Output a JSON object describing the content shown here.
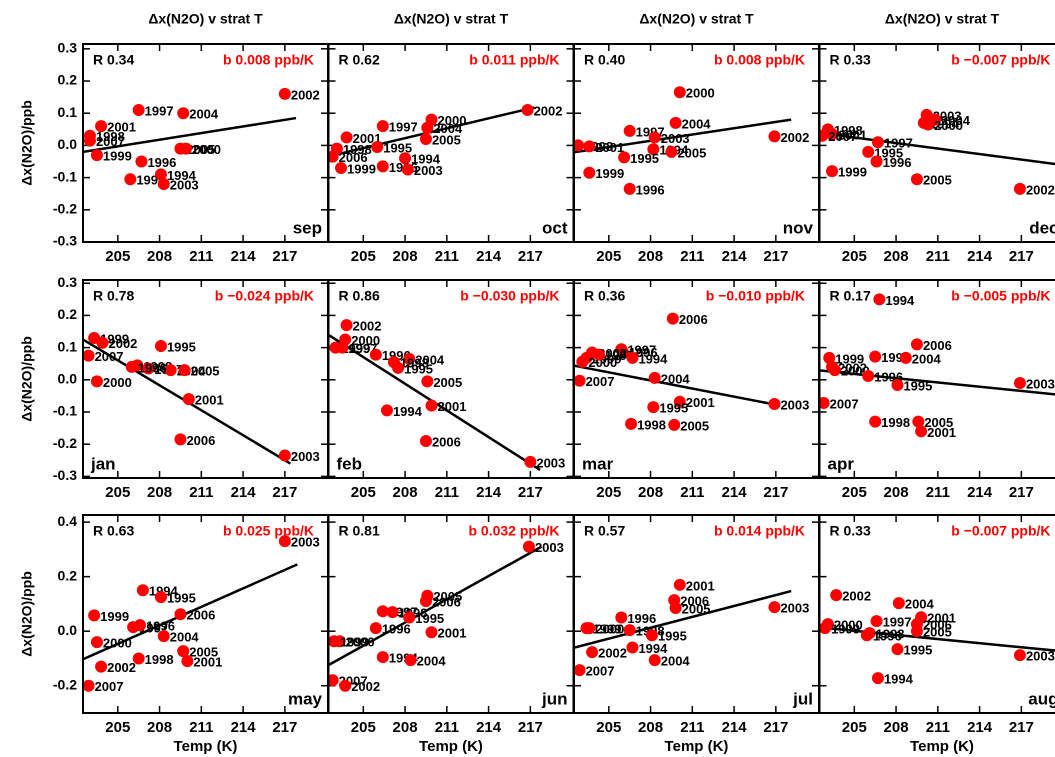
{
  "chart_data": [
    {
      "type": "scatter",
      "title": "Δx(N2O) v strat T",
      "ylabel": "Δx(N2O)/ppb",
      "r_text": "R 0.34",
      "slope_text": "b 0.008 ppb/K",
      "month": "sep",
      "month_corner": "bottom-right",
      "color": "#ff0000",
      "x": [
        217.0,
        206.5,
        209.7,
        203.8,
        203.0,
        203.0,
        209.5,
        209.9,
        203.5,
        206.7,
        205.9,
        208.1,
        208.3
      ],
      "y": [
        0.16,
        0.11,
        0.1,
        0.06,
        0.03,
        0.015,
        -0.01,
        -0.01,
        -0.03,
        -0.05,
        -0.105,
        -0.09,
        -0.12
      ],
      "point_labels": [
        "2002",
        "1997",
        "2004",
        "2001",
        "1998",
        "2007",
        "2005",
        "2000",
        "1999",
        "1996",
        "1995",
        "1994",
        "2003"
      ],
      "fit": {
        "x": [
          202.5,
          217.8
        ],
        "y": [
          -0.02,
          0.085
        ]
      },
      "xlim": [
        202.5,
        220.1
      ],
      "ylim": [
        -0.3,
        0.315
      ],
      "xticks": [
        205,
        208,
        211,
        214,
        217
      ],
      "yticks": [
        0.3,
        0.2,
        0.1,
        {
          "value": 0,
          "label": "0.0"
        },
        -0.1,
        -0.2,
        -0.3
      ]
    },
    {
      "type": "scatter",
      "title": "Δx(N2O) v strat T",
      "r_text": "R 0.62",
      "slope_text": "b 0.011 ppb/K",
      "month": "oct",
      "month_corner": "bottom-right",
      "color": "#ff0000",
      "x": [
        216.8,
        206.4,
        209.9,
        209.6,
        203.8,
        203.1,
        202.8,
        209.5,
        206.0,
        208.0,
        203.4,
        206.4,
        208.2
      ],
      "y": [
        0.11,
        0.06,
        0.08,
        0.055,
        0.025,
        -0.01,
        -0.035,
        0.02,
        -0.005,
        -0.04,
        -0.07,
        -0.065,
        -0.075
      ],
      "point_labels": [
        "2002",
        "1997",
        "2000",
        "2004",
        "2001",
        "1998",
        "2006",
        "2005",
        "1995",
        "1994",
        "1999",
        "1996",
        "2003"
      ],
      "fit": {
        "x": [
          202.4,
          217.3
        ],
        "y": [
          -0.035,
          0.118
        ]
      },
      "xlim": [
        202.5,
        220.1
      ],
      "ylim": [
        -0.3,
        0.315
      ],
      "xticks": [
        205,
        208,
        211,
        214,
        217
      ],
      "yticks": [
        0.3,
        0.2,
        0.1,
        0,
        -0.1,
        -0.2,
        -0.3
      ]
    },
    {
      "type": "scatter",
      "title": "Δx(N2O) v strat T",
      "r_text": "R 0.40",
      "slope_text": "b 0.008 ppb/K",
      "month": "nov",
      "month_corner": "bottom-right",
      "color": "#ff0000",
      "x": [
        210.1,
        209.8,
        206.5,
        208.3,
        216.9,
        202.8,
        203.6,
        208.2,
        209.5,
        206.1,
        203.6,
        206.5
      ],
      "y": [
        0.165,
        0.07,
        0.045,
        0.025,
        0.028,
        0.0,
        -0.003,
        -0.012,
        -0.02,
        -0.037,
        -0.085,
        -0.135
      ],
      "point_labels": [
        "2000",
        "2004",
        "1997",
        "2003",
        "2002",
        "1998",
        "2001",
        "1994",
        "2005",
        "1995",
        "1999",
        "1996"
      ],
      "fit": {
        "x": [
          202.4,
          218.1
        ],
        "y": [
          -0.022,
          0.08
        ]
      },
      "xlim": [
        202.5,
        220.1
      ],
      "ylim": [
        -0.3,
        0.315
      ],
      "xticks": [
        205,
        208,
        211,
        214,
        217
      ],
      "yticks": [
        0.3,
        0.2,
        0.1,
        0,
        -0.1,
        -0.2,
        -0.3
      ]
    },
    {
      "type": "scatter",
      "title": "Δx(N2O) v strat T",
      "r_text": "R 0.33",
      "slope_text": "b −0.007 ppb/K",
      "month": "dec",
      "month_corner": "bottom-right",
      "color": "#ff0000",
      "x": [
        203.1,
        203.4,
        202.7,
        210.2,
        210.0,
        210.8,
        210.3,
        206.7,
        206.0,
        206.6,
        203.4,
        209.5,
        216.9
      ],
      "y": [
        0.05,
        0.035,
        0.03,
        0.095,
        0.07,
        0.08,
        0.065,
        0.01,
        -0.02,
        -0.05,
        -0.08,
        -0.105,
        -0.135
      ],
      "point_labels": [
        "1998",
        "2001",
        "2007",
        "2003",
        "1994",
        "2004",
        "2000",
        "1997",
        "1995",
        "1996",
        "1999",
        "2005",
        "2002"
      ],
      "fit": {
        "x": [
          202.3,
          219.8
        ],
        "y": [
          0.04,
          -0.06
        ]
      },
      "xlim": [
        202.5,
        220.1
      ],
      "ylim": [
        -0.3,
        0.315
      ],
      "xticks": [
        205,
        208,
        211,
        214,
        217
      ],
      "yticks": [
        0.3,
        0.2,
        0.1,
        0,
        -0.1,
        -0.2,
        -0.3
      ]
    },
    {
      "type": "scatter",
      "ylabel": "Δx(N2O)/ppb",
      "r_text": "R 0.78",
      "slope_text": "b −0.024 ppb/K",
      "month": "jan",
      "month_corner": "bottom-left",
      "color": "#ff0000",
      "x": [
        203.3,
        202.9,
        203.9,
        208.1,
        206.4,
        207.2,
        208.8,
        209.8,
        206.0,
        203.5,
        210.1,
        209.5,
        217.0
      ],
      "y": [
        0.13,
        0.075,
        0.115,
        0.105,
        0.045,
        0.035,
        0.03,
        0.03,
        0.04,
        -0.005,
        -0.06,
        -0.185,
        -0.235
      ],
      "point_labels": [
        "1999",
        "2007",
        "2002",
        "1995",
        "1998",
        "1997",
        "2004",
        "2005",
        "1996",
        "2000",
        "2001",
        "2006",
        "2003"
      ],
      "fit": {
        "x": [
          202.5,
          217.4
        ],
        "y": [
          0.125,
          -0.26
        ]
      },
      "xlim": [
        202.5,
        220.1
      ],
      "ylim": [
        -0.305,
        0.31
      ],
      "xticks": [
        205,
        208,
        211,
        214,
        217
      ],
      "yticks": [
        0.3,
        0.2,
        0.1,
        {
          "value": 0,
          "label": "0.0"
        },
        -0.1,
        -0.2,
        -0.3
      ]
    },
    {
      "type": "scatter",
      "r_text": "R 0.86",
      "slope_text": "b −0.030 ppb/K",
      "month": "feb",
      "month_corner": "bottom-left",
      "color": "#ff0000",
      "x": [
        203.8,
        203.7,
        203.0,
        203.5,
        205.9,
        208.3,
        207.2,
        207.5,
        209.6,
        209.9,
        206.7,
        209.5,
        217.0
      ],
      "y": [
        0.17,
        0.125,
        0.1,
        0.1,
        0.078,
        0.065,
        0.055,
        0.037,
        -0.005,
        -0.08,
        -0.095,
        -0.19,
        -0.255
      ],
      "point_labels": [
        "2002",
        "2000",
        "1999",
        "1997",
        "1996",
        "2004",
        "1998",
        "1995",
        "2005",
        "2001",
        "1994",
        "2006",
        "2003"
      ],
      "fit": {
        "x": [
          202.3,
          217.7
        ],
        "y": [
          0.145,
          -0.28
        ]
      },
      "xlim": [
        202.5,
        220.1
      ],
      "ylim": [
        -0.305,
        0.31
      ],
      "xticks": [
        205,
        208,
        211,
        214,
        217
      ],
      "yticks": [
        0.3,
        0.2,
        0.1,
        0,
        -0.1,
        -0.2,
        -0.3
      ]
    },
    {
      "type": "scatter",
      "r_text": "R 0.36",
      "slope_text": "b −0.010 ppb/K",
      "month": "mar",
      "month_corner": "bottom-left",
      "color": "#ff0000",
      "x": [
        209.6,
        205.9,
        206.0,
        203.8,
        203.4,
        203.1,
        202.9,
        204.3,
        206.7,
        208.3,
        210.1,
        208.2,
        206.6,
        209.7,
        216.9
      ],
      "y": [
        0.19,
        0.095,
        0.087,
        0.085,
        0.068,
        0.056,
        -0.003,
        0.078,
        0.068,
        0.006,
        -0.068,
        -0.085,
        -0.137,
        -0.14,
        -0.075
      ],
      "point_labels": [
        "2006",
        "1997",
        "1996",
        "2002",
        "1999",
        "2000",
        "2007",
        "1997",
        "1994",
        "2004",
        "2001",
        "1995",
        "1998",
        "2005",
        "2003"
      ],
      "fit": {
        "x": [
          202.4,
          217.3
        ],
        "y": [
          0.045,
          -0.08
        ]
      },
      "xlim": [
        202.5,
        220.1
      ],
      "ylim": [
        -0.305,
        0.31
      ],
      "xticks": [
        205,
        208,
        211,
        214,
        217
      ],
      "yticks": [
        0.3,
        0.2,
        0.1,
        0,
        -0.1,
        -0.2,
        -0.3
      ]
    },
    {
      "type": "scatter",
      "r_text": "R 0.17",
      "slope_text": "b −0.005 ppb/K",
      "month": "apr",
      "month_corner": "bottom-left",
      "color": "#ff0000",
      "x": [
        206.8,
        209.5,
        203.2,
        203.4,
        203.6,
        206.5,
        208.7,
        206.0,
        208.1,
        202.8,
        206.5,
        209.6,
        209.8,
        216.9
      ],
      "y": [
        0.25,
        0.11,
        0.068,
        0.04,
        0.03,
        0.072,
        0.068,
        0.012,
        -0.016,
        -0.072,
        -0.13,
        -0.13,
        -0.16,
        -0.01
      ],
      "point_labels": [
        "1994",
        "2006",
        "1999",
        "2002",
        "2000",
        "1997",
        "2004",
        "1996",
        "1995",
        "2007",
        "1998",
        "2005",
        "2001",
        "2003"
      ],
      "fit": {
        "x": [
          202.3,
          219.8
        ],
        "y": [
          0.03,
          -0.047
        ]
      },
      "xlim": [
        202.5,
        220.1
      ],
      "ylim": [
        -0.305,
        0.31
      ],
      "xticks": [
        205,
        208,
        211,
        214,
        217
      ],
      "yticks": [
        0.3,
        0.2,
        0.1,
        0,
        -0.1,
        -0.2,
        -0.3
      ]
    },
    {
      "type": "scatter",
      "ylabel": "Δx(N2O)/ppb",
      "xlabel": "Temp (K)",
      "r_text": "R 0.63",
      "slope_text": "b 0.025 ppb/K",
      "month": "may",
      "month_corner": "bottom-right",
      "color": "#ff0000",
      "x": [
        217.0,
        206.8,
        208.1,
        209.5,
        203.3,
        206.1,
        206.6,
        203.5,
        208.3,
        209.7,
        210.0,
        206.5,
        203.8,
        202.9
      ],
      "y": [
        0.33,
        0.15,
        0.125,
        0.062,
        0.058,
        0.015,
        0.022,
        -0.04,
        -0.018,
        -0.073,
        -0.11,
        -0.1,
        -0.13,
        -0.2
      ],
      "point_labels": [
        "2003",
        "1994",
        "1995",
        "2006",
        "1999",
        "1997",
        "1996",
        "2000",
        "2004",
        "2005",
        "2001",
        "1998",
        "2002",
        "2007"
      ],
      "fit": {
        "x": [
          202.5,
          217.9
        ],
        "y": [
          -0.103,
          0.245
        ]
      },
      "xlim": [
        202.5,
        220.1
      ],
      "ylim": [
        -0.3,
        0.426
      ],
      "xticks": [
        205,
        208,
        211,
        214,
        217
      ],
      "yticks": [
        0.4,
        0.2,
        {
          "value": 0,
          "label": "0.0"
        },
        -0.2
      ]
    },
    {
      "type": "scatter",
      "xlabel": "Temp (K)",
      "r_text": "R 0.81",
      "slope_text": "b 0.032 ppb/K",
      "month": "jun",
      "month_corner": "bottom-right",
      "color": "#ff0000",
      "x": [
        216.9,
        209.6,
        209.5,
        206.4,
        207.1,
        208.3,
        205.9,
        203.3,
        202.9,
        209.9,
        206.4,
        208.4,
        202.8,
        203.7
      ],
      "y": [
        0.31,
        0.13,
        0.11,
        0.073,
        0.07,
        0.05,
        0.011,
        -0.037,
        -0.037,
        -0.004,
        -0.095,
        -0.106,
        -0.18,
        -0.2
      ],
      "point_labels": [
        "2003",
        "2005",
        "2006",
        "1997",
        "1998",
        "1995",
        "1996",
        "2000",
        "1999",
        "2001",
        "1994",
        "2004",
        "2007",
        "2002"
      ],
      "fit": {
        "x": [
          202.3,
          217.8
        ],
        "y": [
          -0.13,
          0.31
        ]
      },
      "xlim": [
        202.5,
        220.1
      ],
      "ylim": [
        -0.3,
        0.426
      ],
      "xticks": [
        205,
        208,
        211,
        214,
        217
      ],
      "yticks": [
        0.4,
        0.2,
        0,
        -0.2
      ]
    },
    {
      "type": "scatter",
      "xlabel": "Temp (K)",
      "r_text": "R 0.57",
      "slope_text": "b 0.014 ppb/K",
      "month": "jul",
      "month_corner": "bottom-right",
      "color": "#ff0000",
      "x": [
        210.1,
        209.7,
        209.8,
        216.9,
        205.9,
        206.5,
        208.1,
        206.7,
        203.4,
        203.6,
        203.8,
        208.3,
        202.9
      ],
      "y": [
        0.17,
        0.114,
        0.085,
        0.088,
        0.05,
        0.004,
        -0.015,
        -0.06,
        0.011,
        0.011,
        -0.077,
        -0.106,
        -0.143
      ],
      "point_labels": [
        "2001",
        "2006",
        "2005",
        "2003",
        "1996",
        "1998",
        "1995",
        "1994",
        "1999",
        "2000",
        "2002",
        "2004",
        "2007"
      ],
      "fit": {
        "x": [
          202.4,
          218.1
        ],
        "y": [
          -0.062,
          0.147
        ]
      },
      "xlim": [
        202.5,
        220.1
      ],
      "ylim": [
        -0.3,
        0.426
      ],
      "xticks": [
        205,
        208,
        211,
        214,
        217
      ],
      "yticks": [
        0.4,
        0.2,
        0,
        -0.2
      ]
    },
    {
      "type": "scatter",
      "xlabel": "Temp (K)",
      "r_text": "R 0.33",
      "slope_text": "b −0.007 ppb/K",
      "month": "aug",
      "month_corner": "bottom-right",
      "color": "#ff0000",
      "x": [
        203.7,
        208.2,
        209.8,
        209.5,
        209.5,
        203.1,
        206.6,
        202.9,
        206.1,
        205.9,
        208.1,
        206.7,
        216.9
      ],
      "y": [
        0.132,
        0.103,
        0.051,
        0.026,
        0.0,
        0.026,
        0.037,
        0.011,
        -0.007,
        -0.015,
        -0.066,
        -0.172,
        -0.088
      ],
      "point_labels": [
        "2002",
        "2004",
        "2001",
        "2006",
        "2005",
        "2000",
        "1997",
        "1999",
        "1998",
        "1996",
        "1995",
        "1994",
        "2003"
      ],
      "fit": {
        "x": [
          202.3,
          219.8
        ],
        "y": [
          0.015,
          -0.073
        ]
      },
      "xlim": [
        202.5,
        220.1
      ],
      "ylim": [
        -0.3,
        0.426
      ],
      "xticks": [
        205,
        208,
        211,
        214,
        217
      ],
      "yticks": [
        0.4,
        0.2,
        0,
        -0.2
      ]
    }
  ]
}
